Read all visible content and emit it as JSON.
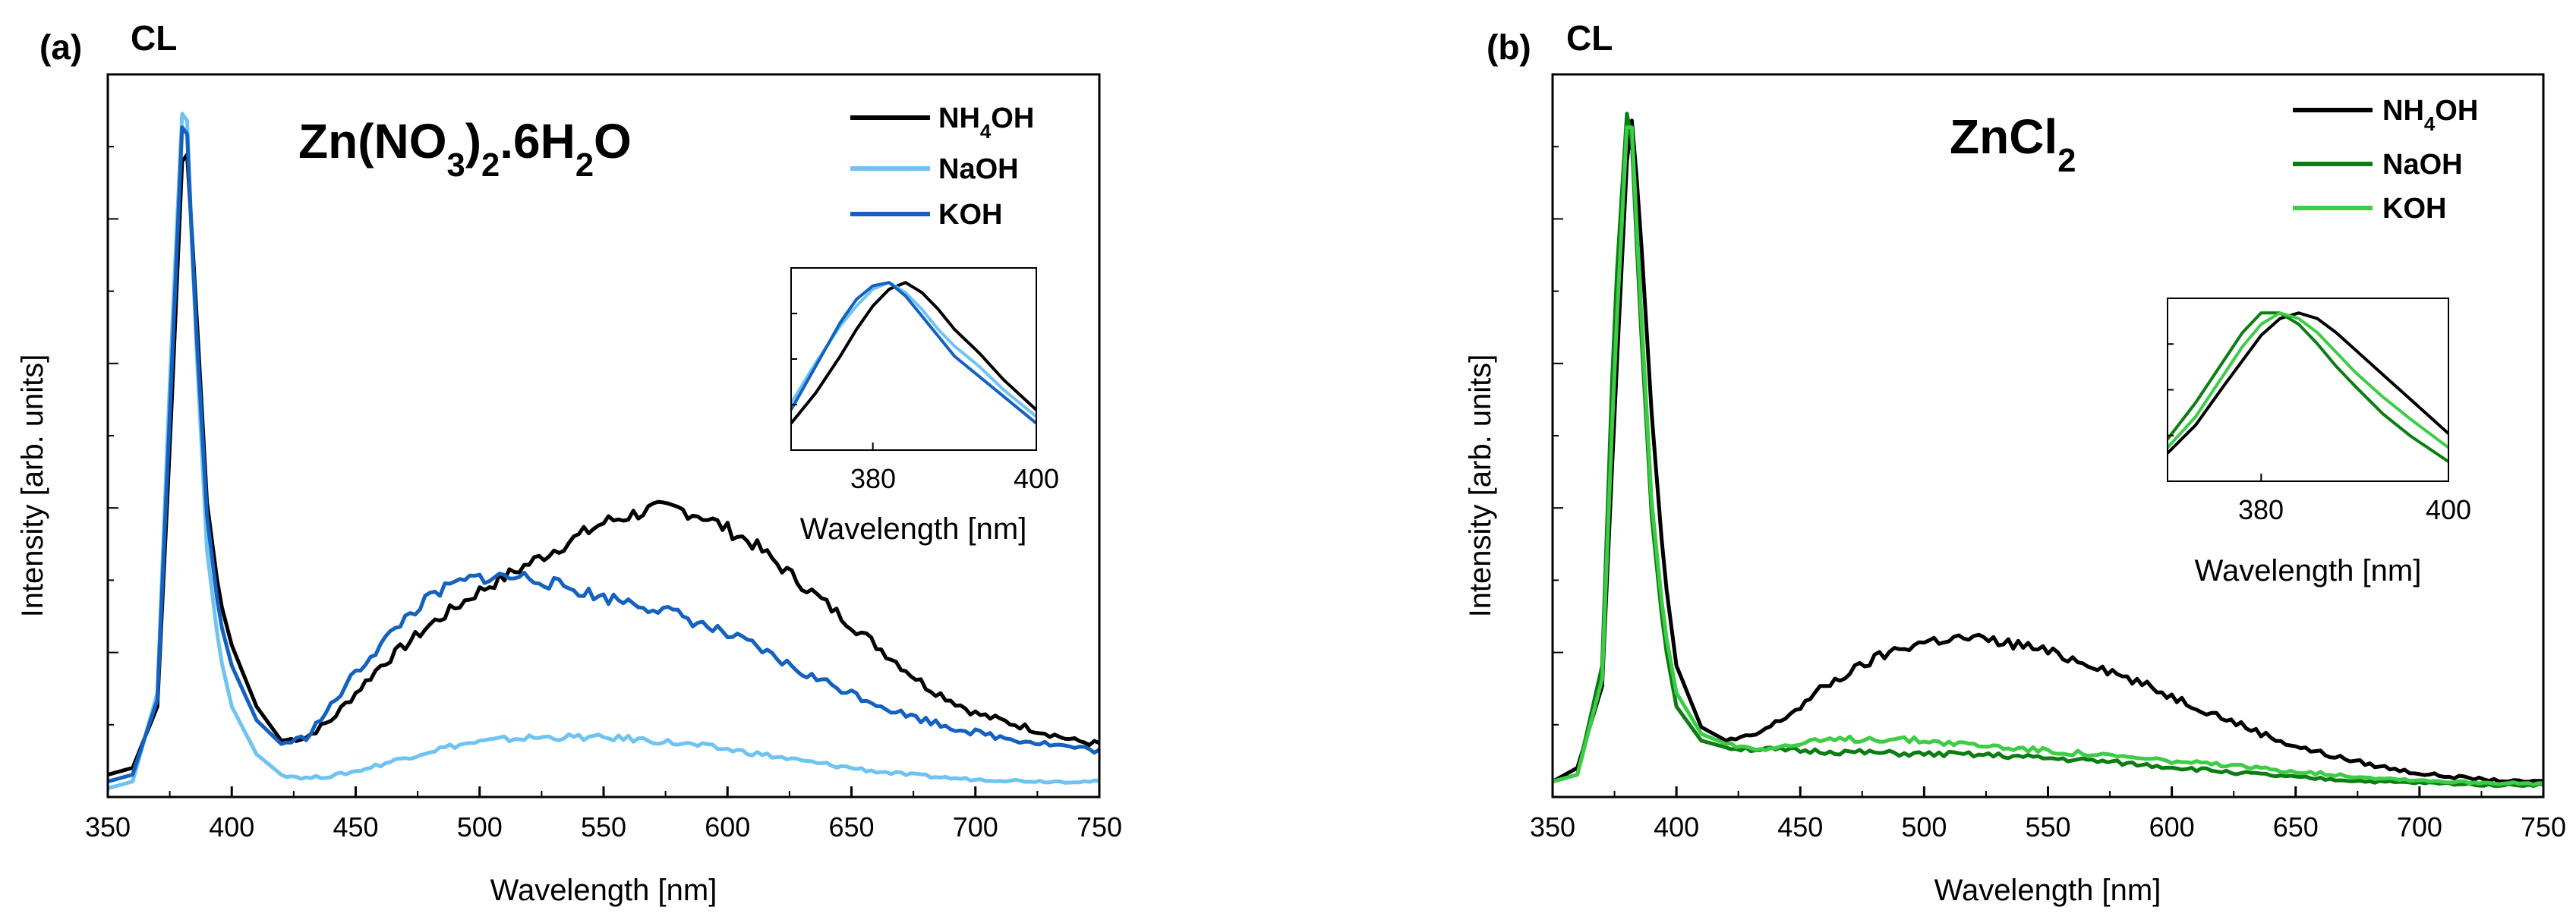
{
  "figure": {
    "panels": [
      {
        "panel_label": "(a)",
        "technique": "CL",
        "precursor": {
          "parts": [
            {
              "t": "Zn(NO",
              "sub": false
            },
            {
              "t": "3",
              "sub": true
            },
            {
              "t": ")",
              "sub": false
            },
            {
              "t": "2",
              "sub": true
            },
            {
              "t": ".6H",
              "sub": false
            },
            {
              "t": "2",
              "sub": true
            },
            {
              "t": "O",
              "sub": false
            }
          ]
        },
        "legend_entries": [
          {
            "parts": [
              {
                "t": "NH",
                "sub": false
              },
              {
                "t": "4",
                "sub": true
              },
              {
                "t": "OH",
                "sub": false
              }
            ],
            "color": "#000000"
          },
          {
            "parts": [
              {
                "t": "NaOH",
                "sub": false
              }
            ],
            "color": "#6ec3f2"
          },
          {
            "parts": [
              {
                "t": "KOH",
                "sub": false
              }
            ],
            "color": "#1461c0"
          }
        ],
        "inset_xlabel": "Wavelength [nm]",
        "inset_ticks": [
          "380",
          "400"
        ]
      },
      {
        "panel_label": "(b)",
        "technique": "CL",
        "precursor": {
          "parts": [
            {
              "t": "ZnCl",
              "sub": false
            },
            {
              "t": "2",
              "sub": true
            }
          ]
        },
        "legend_entries": [
          {
            "parts": [
              {
                "t": "NH",
                "sub": false
              },
              {
                "t": "4",
                "sub": true
              },
              {
                "t": "OH",
                "sub": false
              }
            ],
            "color": "#000000"
          },
          {
            "parts": [
              {
                "t": "NaOH",
                "sub": false
              }
            ],
            "color": "#0c7d12"
          },
          {
            "parts": [
              {
                "t": "KOH",
                "sub": false
              }
            ],
            "color": "#3dcc45"
          }
        ],
        "inset_xlabel": "Wavelength [nm]",
        "inset_ticks": [
          "380",
          "400"
        ]
      }
    ]
  },
  "chart_data": [
    {
      "type": "line",
      "title": "(a) CL",
      "xlabel": "Wavelength [nm]",
      "ylabel": "Intensity [arb. units]",
      "xlim": [
        350,
        750
      ],
      "ylim": [
        0,
        1.0
      ],
      "xticks": [
        350,
        400,
        450,
        500,
        550,
        600,
        650,
        700,
        750
      ],
      "x": [
        350,
        360,
        370,
        375,
        380,
        382,
        385,
        390,
        395,
        400,
        410,
        420,
        430,
        440,
        450,
        460,
        470,
        480,
        490,
        500,
        510,
        520,
        530,
        540,
        550,
        560,
        570,
        580,
        590,
        600,
        610,
        620,
        630,
        640,
        650,
        660,
        670,
        680,
        690,
        700,
        710,
        720,
        730,
        740,
        750
      ],
      "series": [
        {
          "name": "NH4OH",
          "values": [
            0.02,
            0.03,
            0.12,
            0.5,
            0.92,
            0.93,
            0.75,
            0.42,
            0.28,
            0.21,
            0.12,
            0.07,
            0.075,
            0.1,
            0.14,
            0.18,
            0.21,
            0.24,
            0.265,
            0.29,
            0.31,
            0.33,
            0.35,
            0.37,
            0.39,
            0.4,
            0.41,
            0.41,
            0.4,
            0.38,
            0.36,
            0.33,
            0.3,
            0.27,
            0.24,
            0.21,
            0.18,
            0.15,
            0.13,
            0.11,
            0.1,
            0.09,
            0.08,
            0.07,
            0.065
          ]
        },
        {
          "name": "NaOH",
          "values": [
            0.0,
            0.01,
            0.14,
            0.6,
            0.99,
            0.98,
            0.7,
            0.35,
            0.2,
            0.12,
            0.05,
            0.02,
            0.015,
            0.018,
            0.025,
            0.035,
            0.045,
            0.055,
            0.063,
            0.068,
            0.072,
            0.074,
            0.075,
            0.075,
            0.074,
            0.073,
            0.07,
            0.066,
            0.062,
            0.057,
            0.052,
            0.046,
            0.04,
            0.035,
            0.03,
            0.025,
            0.021,
            0.018,
            0.015,
            0.013,
            0.012,
            0.011,
            0.01,
            0.01,
            0.01
          ]
        },
        {
          "name": "KOH",
          "values": [
            0.01,
            0.02,
            0.13,
            0.55,
            0.97,
            0.96,
            0.72,
            0.4,
            0.25,
            0.18,
            0.1,
            0.065,
            0.075,
            0.12,
            0.17,
            0.21,
            0.25,
            0.28,
            0.3,
            0.31,
            0.31,
            0.31,
            0.3,
            0.29,
            0.28,
            0.275,
            0.265,
            0.255,
            0.24,
            0.225,
            0.21,
            0.19,
            0.17,
            0.155,
            0.14,
            0.125,
            0.11,
            0.1,
            0.09,
            0.082,
            0.075,
            0.07,
            0.065,
            0.06,
            0.055
          ]
        }
      ],
      "inset": {
        "type": "line",
        "xlabel": "Wavelength [nm]",
        "xlim": [
          370,
          400
        ],
        "xticks": [
          380,
          400
        ],
        "ylim": [
          0.5,
          1.0
        ],
        "x": [
          370,
          373,
          376,
          378,
          380,
          382,
          384,
          386,
          388,
          390,
          393,
          396,
          400
        ],
        "series": [
          {
            "name": "NH4OH",
            "values": [
              0.58,
              0.67,
              0.78,
              0.86,
              0.93,
              0.98,
              1.0,
              0.97,
              0.92,
              0.86,
              0.79,
              0.71,
              0.62
            ]
          },
          {
            "name": "NaOH",
            "values": [
              0.64,
              0.76,
              0.87,
              0.93,
              0.98,
              1.0,
              0.97,
              0.92,
              0.86,
              0.81,
              0.75,
              0.68,
              0.6
            ]
          },
          {
            "name": "KOH",
            "values": [
              0.62,
              0.75,
              0.88,
              0.95,
              0.99,
              1.0,
              0.96,
              0.9,
              0.84,
              0.78,
              0.72,
              0.66,
              0.58
            ]
          }
        ]
      }
    },
    {
      "type": "line",
      "title": "(b) CL",
      "xlabel": "Wavelength [nm]",
      "ylabel": "Intensity [arb. units]",
      "xlim": [
        350,
        750
      ],
      "ylim": [
        0,
        1.0
      ],
      "xticks": [
        350,
        400,
        450,
        500,
        550,
        600,
        650,
        700,
        750
      ],
      "x": [
        350,
        360,
        370,
        375,
        380,
        382,
        385,
        390,
        395,
        400,
        410,
        420,
        430,
        440,
        450,
        460,
        470,
        480,
        490,
        500,
        510,
        520,
        530,
        540,
        550,
        560,
        570,
        580,
        590,
        600,
        610,
        620,
        630,
        640,
        650,
        660,
        670,
        680,
        690,
        700,
        710,
        720,
        730,
        740,
        750
      ],
      "series": [
        {
          "name": "NH4OH",
          "values": [
            0.01,
            0.03,
            0.15,
            0.55,
            0.92,
            0.98,
            0.85,
            0.55,
            0.32,
            0.18,
            0.09,
            0.07,
            0.075,
            0.095,
            0.12,
            0.15,
            0.17,
            0.19,
            0.205,
            0.215,
            0.22,
            0.22,
            0.215,
            0.21,
            0.2,
            0.19,
            0.18,
            0.165,
            0.15,
            0.135,
            0.12,
            0.105,
            0.09,
            0.075,
            0.062,
            0.052,
            0.043,
            0.035,
            0.028,
            0.022,
            0.018,
            0.015,
            0.012,
            0.01,
            0.01
          ]
        },
        {
          "name": "NaOH",
          "values": [
            0.01,
            0.02,
            0.18,
            0.7,
            0.99,
            0.95,
            0.72,
            0.4,
            0.22,
            0.12,
            0.07,
            0.06,
            0.058,
            0.056,
            0.055,
            0.054,
            0.053,
            0.052,
            0.051,
            0.05,
            0.05,
            0.049,
            0.048,
            0.046,
            0.044,
            0.042,
            0.04,
            0.037,
            0.034,
            0.031,
            0.028,
            0.025,
            0.022,
            0.019,
            0.016,
            0.014,
            0.012,
            0.01,
            0.009,
            0.008,
            0.007,
            0.006,
            0.005,
            0.005,
            0.005
          ]
        },
        {
          "name": "KOH",
          "values": [
            0.01,
            0.02,
            0.16,
            0.62,
            0.97,
            0.97,
            0.75,
            0.42,
            0.24,
            0.14,
            0.08,
            0.065,
            0.06,
            0.06,
            0.065,
            0.07,
            0.072,
            0.073,
            0.072,
            0.07,
            0.067,
            0.064,
            0.061,
            0.058,
            0.055,
            0.052,
            0.049,
            0.046,
            0.043,
            0.04,
            0.037,
            0.034,
            0.031,
            0.028,
            0.025,
            0.022,
            0.019,
            0.016,
            0.014,
            0.012,
            0.01,
            0.009,
            0.008,
            0.007,
            0.006
          ]
        }
      ],
      "inset": {
        "type": "line",
        "xlabel": "Wavelength [nm]",
        "xlim": [
          370,
          400
        ],
        "xticks": [
          380,
          400
        ],
        "ylim": [
          0.4,
          1.0
        ],
        "x": [
          370,
          373,
          376,
          378,
          380,
          382,
          384,
          386,
          388,
          390,
          393,
          396,
          400
        ],
        "series": [
          {
            "name": "NH4OH",
            "values": [
              0.5,
              0.6,
              0.74,
              0.83,
              0.92,
              0.98,
              1.0,
              0.98,
              0.93,
              0.87,
              0.78,
              0.69,
              0.57
            ]
          },
          {
            "name": "NaOH",
            "values": [
              0.55,
              0.68,
              0.83,
              0.93,
              1.0,
              1.0,
              0.96,
              0.89,
              0.81,
              0.74,
              0.64,
              0.56,
              0.47
            ]
          },
          {
            "name": "KOH",
            "values": [
              0.52,
              0.63,
              0.78,
              0.88,
              0.96,
              1.0,
              0.98,
              0.93,
              0.86,
              0.79,
              0.7,
              0.62,
              0.52
            ]
          }
        ]
      }
    }
  ]
}
